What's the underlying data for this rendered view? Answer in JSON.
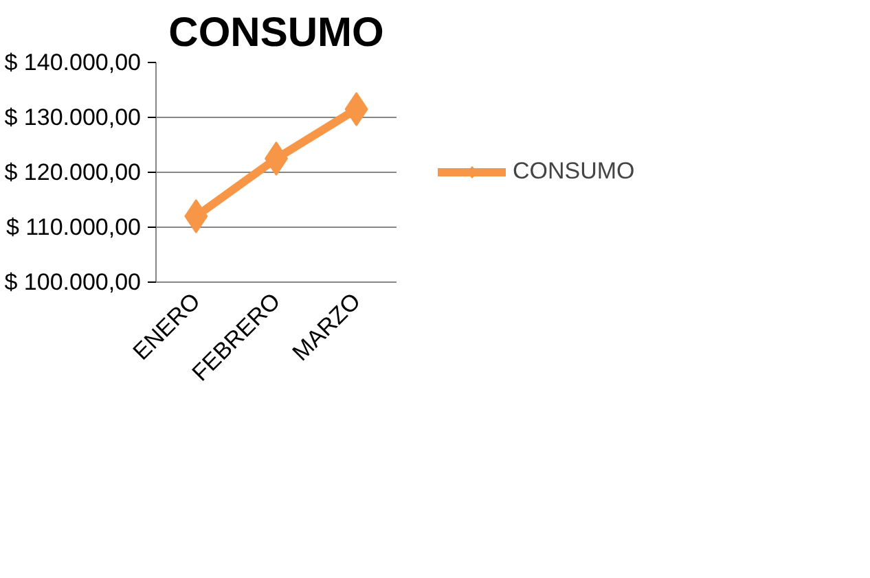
{
  "chart_data": {
    "type": "line",
    "title": "CONSUMO",
    "categories": [
      "ENERO",
      "FEBRERO",
      "MARZO"
    ],
    "series": [
      {
        "name": "CONSUMO",
        "color": "#f79646",
        "values": [
          112000,
          122500,
          131500
        ]
      }
    ],
    "ylim": [
      100000,
      140000
    ],
    "yticks": [
      {
        "value": 100000,
        "label": "$ 100.000,00"
      },
      {
        "value": 110000,
        "label": "$ 110.000,00"
      },
      {
        "value": 120000,
        "label": "$ 120.000,00"
      },
      {
        "value": 130000,
        "label": "$ 130.000,00"
      },
      {
        "value": 140000,
        "label": "$ 140.000,00"
      }
    ],
    "grid": "y",
    "legend": "right",
    "marker": "diamond",
    "line_style": "solid"
  }
}
